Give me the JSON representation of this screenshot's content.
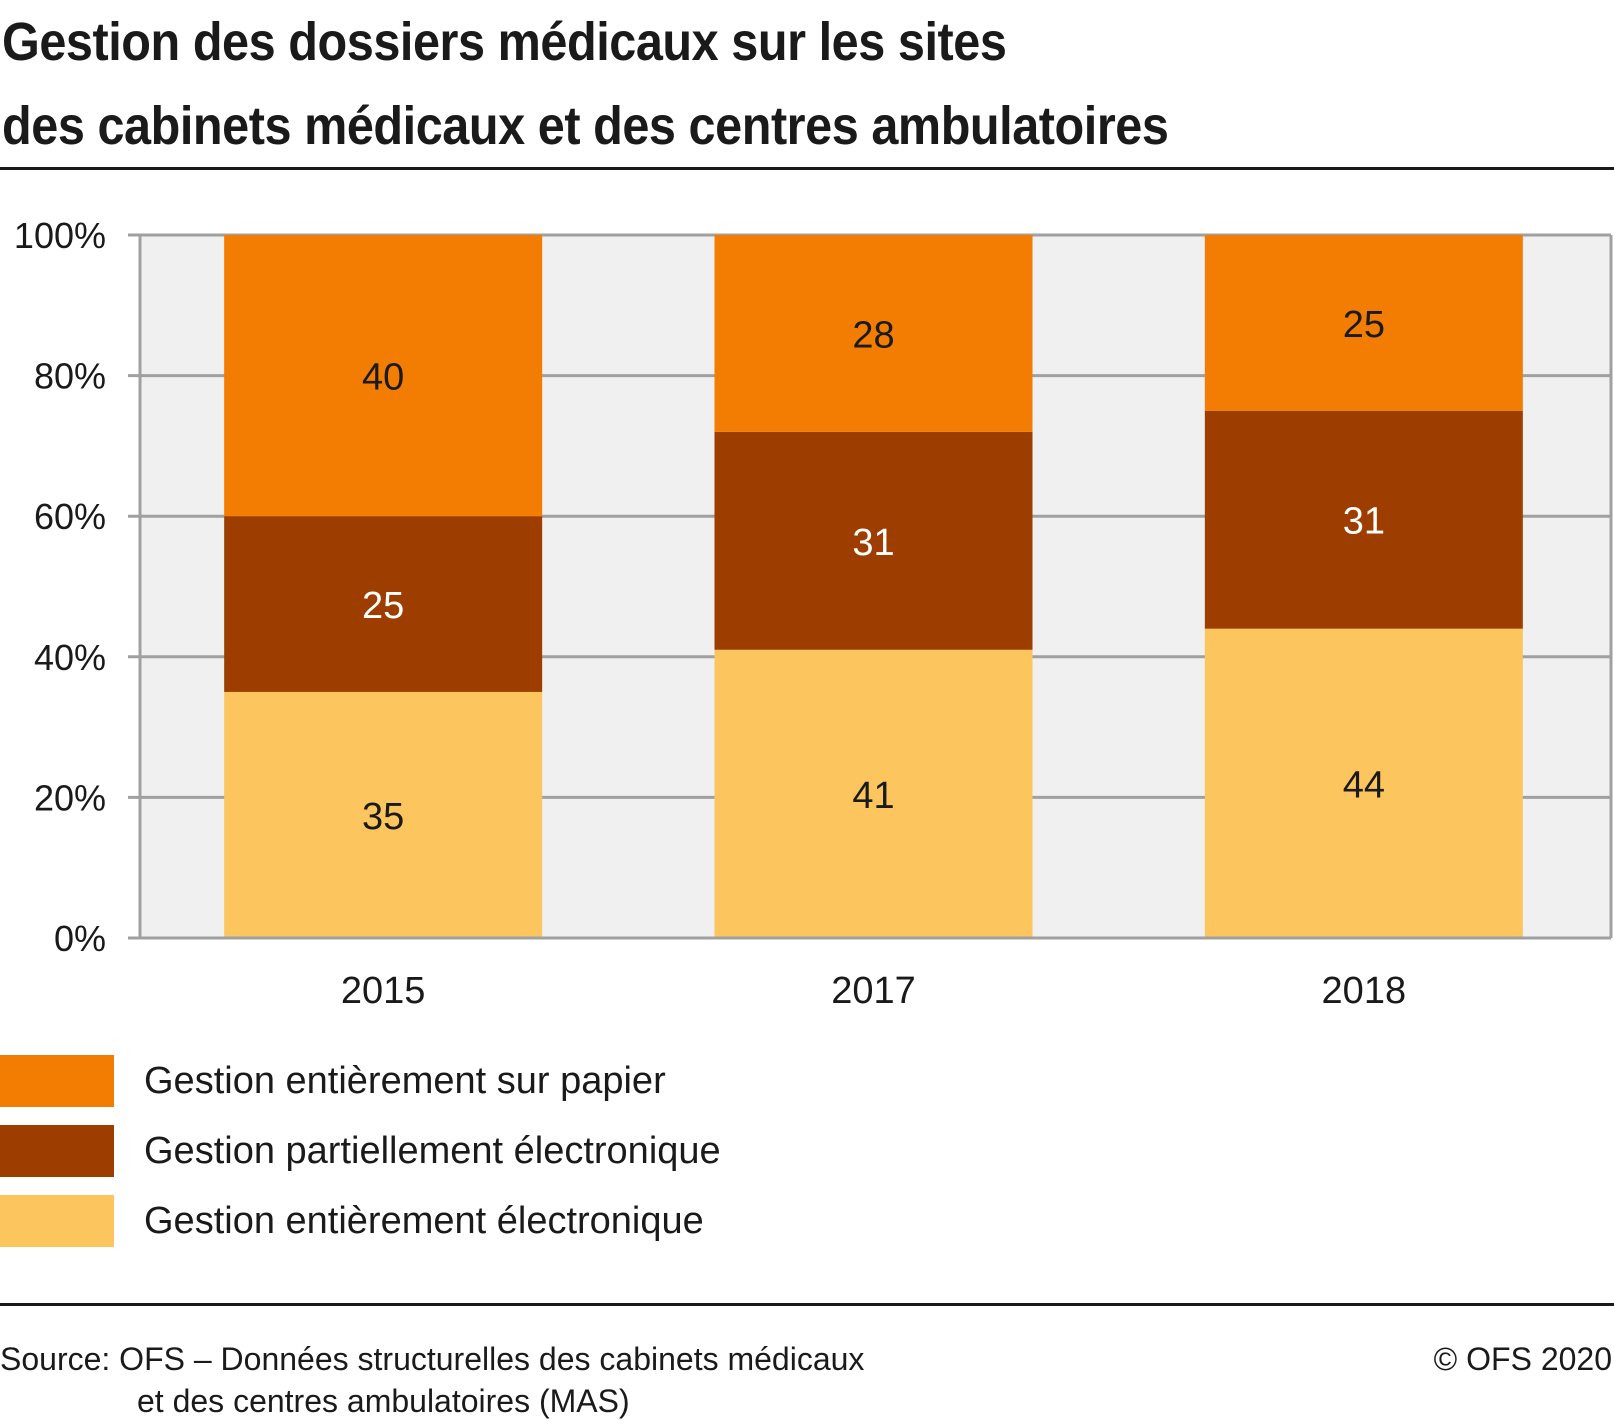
{
  "header": {
    "title_line1": "Gestion des dossiers médicaux sur les sites",
    "title_line2": "des cabinets médicaux et des centres ambulatoires"
  },
  "chart_data": {
    "type": "bar",
    "stacked": true,
    "title": "Gestion des dossiers médicaux sur les sites des cabinets médicaux et des centres ambulatoires",
    "xlabel": "",
    "ylabel": "",
    "categories": [
      "2015",
      "2017",
      "2018"
    ],
    "ylim": [
      0,
      100
    ],
    "yticks": [
      0,
      20,
      40,
      60,
      80,
      100
    ],
    "ytick_labels": [
      "0%",
      "20%",
      "40%",
      "60%",
      "80%",
      "100%"
    ],
    "grid": true,
    "legend_position": "bottom-left",
    "series": [
      {
        "name": "Gestion entièrement électronique",
        "color": "#fdc55e",
        "label_color": "#1a1a1a",
        "values": [
          35,
          41,
          44
        ]
      },
      {
        "name": "Gestion partiellement électronique",
        "color": "#9e3d00",
        "label_color": "#ffffff",
        "values": [
          25,
          31,
          31
        ]
      },
      {
        "name": "Gestion entièrement sur papier",
        "color": "#f37c02",
        "label_color": "#1a1a1a",
        "values": [
          40,
          28,
          25
        ]
      }
    ],
    "plot_background": "#f0f0f0",
    "grid_color": "#a0a0a0"
  },
  "legend": {
    "items": [
      {
        "label": "Gestion entièrement sur papier",
        "color": "#f37c02"
      },
      {
        "label": "Gestion partiellement électronique",
        "color": "#9e3d00"
      },
      {
        "label": "Gestion entièrement électronique",
        "color": "#fdc55e"
      }
    ]
  },
  "footer": {
    "source_line1": "Source: OFS – Données structurelles des cabinets médicaux",
    "source_line2": "et des centres ambulatoires (MAS)",
    "copyright": "© OFS 2020"
  }
}
